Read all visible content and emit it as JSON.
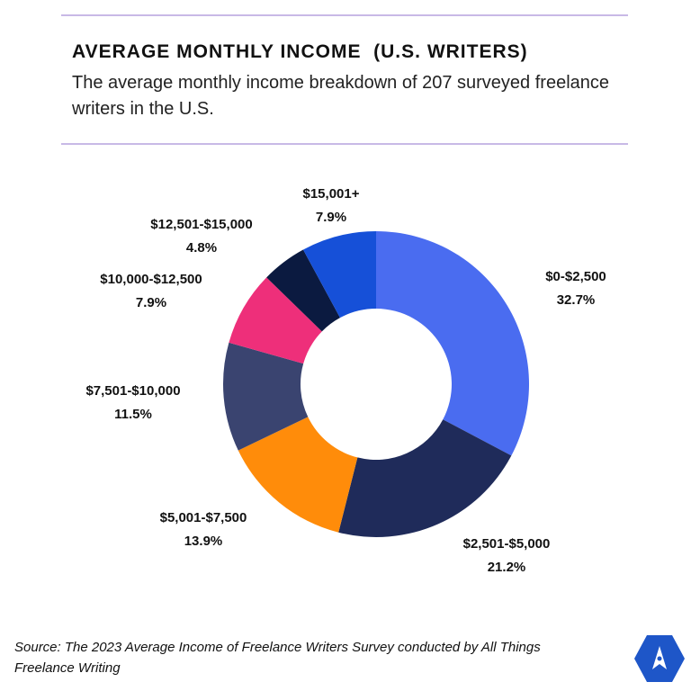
{
  "chart_data": {
    "type": "donut",
    "title": "AVERAGE MONTHLY INCOME  (U.S. WRITERS)",
    "subtitle": "The average monthly income breakdown of 207 surveyed freelance writers in the U.S.",
    "source": "Source: The 2023 Average Income of Freelance Writers Survey conducted by All Things Freelance Writing",
    "categories": [
      "$0-$2,500",
      "$2,501-$5,000",
      "$5,001-$7,500",
      "$7,501-$10,000",
      "$10,000-$12,500",
      "$12,501-$15,000",
      "$15,001+"
    ],
    "values": [
      32.7,
      21.2,
      13.9,
      11.5,
      7.9,
      4.8,
      7.9
    ],
    "value_labels": [
      "32.7%",
      "21.2%",
      "13.9%",
      "11.5%",
      "7.9%",
      "4.8%",
      "7.9%"
    ],
    "colors": [
      "#4a6cf0",
      "#1f2b5a",
      "#ff8c0a",
      "#3a4470",
      "#ee2f7a",
      "#0b1a40",
      "#1650d8"
    ]
  }
}
